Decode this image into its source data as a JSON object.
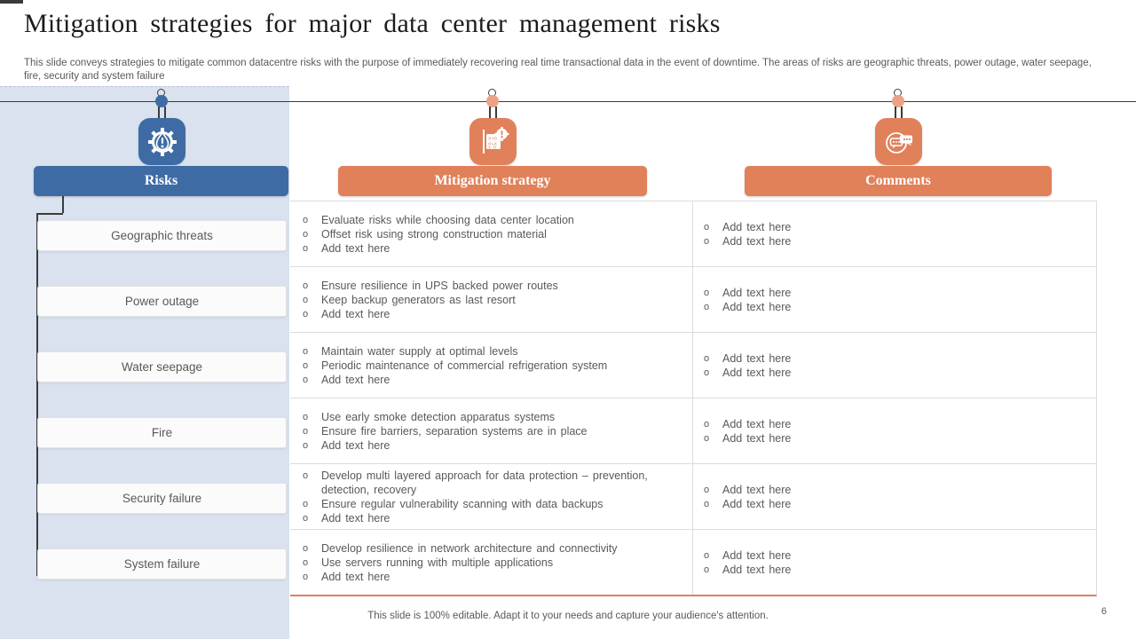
{
  "slide": {
    "title": "Mitigation strategies for major data center management risks",
    "subtitle": "This slide conveys strategies to mitigate common datacentre risks with the purpose of immediately recovering real time transactional data in the event of downtime. The areas of risks are geographic threats, power outage, water seepage, fire, security and system failure",
    "footer": "This slide is 100% editable. Adapt it to your needs and capture your audience's attention.",
    "page_number": "6"
  },
  "colors": {
    "blue": "#3e6ba4",
    "orange": "#e0815a",
    "salmon_node": "#eca285",
    "panel_light_blue": "#d9e2ee",
    "text_gray": "#595959",
    "table_border": "#dcdcdc"
  },
  "columns": {
    "risks": {
      "label": "Risks",
      "icon": "warning-gear-icon"
    },
    "mitigation": {
      "label": "Mitigation strategy",
      "icon": "strategy-board-icon"
    },
    "comments": {
      "label": "Comments",
      "icon": "speech-bubbles-icon"
    }
  },
  "bullet_marker": "o",
  "risks": [
    "Geographic threats",
    "Power outage",
    "Water seepage",
    "Fire",
    "Security failure",
    "System failure"
  ],
  "rows": [
    {
      "strategies": [
        "Evaluate risks while choosing data center location",
        "Offset risk using strong construction material",
        "Add text here"
      ],
      "comments": [
        "Add text here",
        "Add text here"
      ]
    },
    {
      "strategies": [
        "Ensure resilience in UPS backed power routes",
        "Keep backup generators as last resort",
        "Add text here"
      ],
      "comments": [
        "Add text here",
        "Add text here"
      ]
    },
    {
      "strategies": [
        "Maintain water supply at optimal levels",
        "Periodic maintenance of commercial refrigeration system",
        "Add text here"
      ],
      "comments": [
        "Add text here",
        "Add text here"
      ]
    },
    {
      "strategies": [
        "Use early smoke detection apparatus systems",
        "Ensure fire barriers, separation systems are in place",
        "Add text here"
      ],
      "comments": [
        "Add text here",
        "Add text here"
      ]
    },
    {
      "strategies": [
        "Develop multi layered approach for data protection – prevention, detection, recovery",
        "Ensure regular vulnerability scanning with data backups",
        "Add text here"
      ],
      "comments": [
        "Add text here",
        "Add text here"
      ]
    },
    {
      "strategies": [
        "Develop resilience in network architecture and connectivity",
        "Use servers running with multiple applications",
        "Add text here"
      ],
      "comments": [
        "Add text here",
        "Add text here"
      ]
    }
  ]
}
